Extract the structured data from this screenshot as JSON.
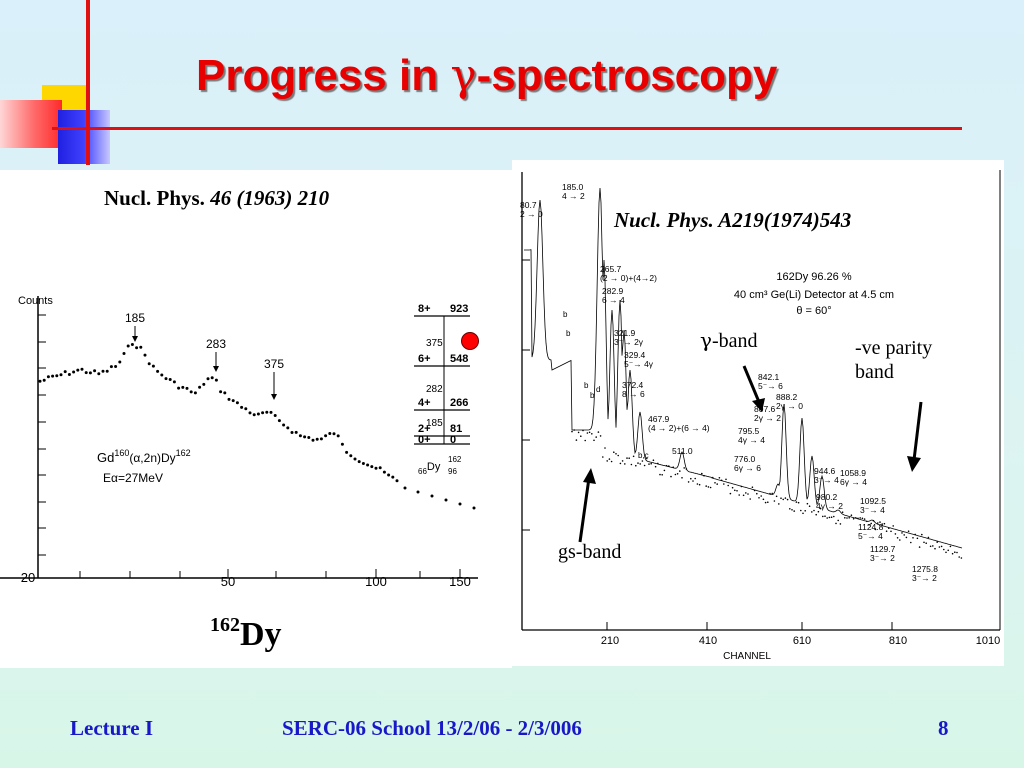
{
  "slide": {
    "title_prefix": "Progress in ",
    "title_gamma": "γ",
    "title_suffix": "-spectroscopy",
    "footer_left": "Lecture I",
    "footer_center": "SERC-06 School  13/2/06 - 2/3/006",
    "page_number": "8",
    "colors": {
      "title": "#e80000",
      "footer": "#1818c8",
      "accent_line": "#e01010"
    }
  },
  "left_figure": {
    "citation_journal": "Nucl. Phys. ",
    "citation_ref": "46 (1963) 210",
    "nucleus_mass": "162",
    "nucleus_symbol": "Dy",
    "ylabel": "Counts",
    "reaction_gd": "Gd",
    "reaction_a160": "160",
    "reaction_mid": "(α,2n)Dy",
    "reaction_a162": "162",
    "beam_energy": "Eα=27MeV",
    "peak_labels": [
      "185",
      "283",
      "375"
    ],
    "x_ticks": [
      "20",
      "50",
      "100",
      "150"
    ],
    "level_scheme": {
      "spins": [
        "8+",
        "6+",
        "4+",
        "2+",
        "0+"
      ],
      "energies": [
        "923",
        "548",
        "266",
        "81",
        "0"
      ],
      "transitions": [
        "375",
        "282",
        "185"
      ],
      "nucleus_Z": "66",
      "nucleus_A": "162",
      "nucleus_sym": "Dy",
      "nucleus_N": "96"
    }
  },
  "right_figure": {
    "citation": "Nucl. Phys. A219(1974)543",
    "info_line1": "162Dy        96.26 %",
    "info_line2": "40 cm³ Ge(Li) Detector  at  4.5 cm",
    "info_line3": "θ = 60°",
    "xlabel": "CHANNEL",
    "x_ticks": [
      "210",
      "410",
      "610",
      "810",
      "1010"
    ],
    "annotations": {
      "gamma_band_symbol": "γ",
      "gamma_band_text": "-band",
      "neg_parity_line1": "-ve parity",
      "neg_parity_line2": "band",
      "gs_band": "gs-band"
    },
    "peaks": [
      {
        "e": "80.7",
        "t": "2 → 0"
      },
      {
        "e": "185.0",
        "t": "4 → 2"
      },
      {
        "e": "265.7",
        "t": "(2 → 0)+(4→2)"
      },
      {
        "e": "282.9",
        "t": "6 → 4"
      },
      {
        "e": "321.9",
        "t": "3⁻→ 2γ"
      },
      {
        "e": "329.4",
        "t": "5⁻→ 4γ"
      },
      {
        "e": "372.4",
        "t": "8 → 6"
      },
      {
        "e": "467.9",
        "t": "(4 → 2)+(6 → 4)"
      },
      {
        "e": "511.0",
        "t": ""
      },
      {
        "e": "776.0",
        "t": "6γ → 6"
      },
      {
        "e": "795.5",
        "t": "4γ → 4"
      },
      {
        "e": "807.6",
        "t": "2γ → 2"
      },
      {
        "e": "842.1",
        "t": "5⁻→ 6"
      },
      {
        "e": "888.2",
        "t": "2γ → 0"
      },
      {
        "e": "944.6",
        "t": "3⁻→ 4"
      },
      {
        "e": "980.2",
        "t": "4γ → 2"
      },
      {
        "e": "1058.9",
        "t": "6γ → 4"
      },
      {
        "e": "1092.5",
        "t": "3⁻→ 4"
      },
      {
        "e": "1124.8",
        "t": "5⁻→ 4"
      },
      {
        "e": "1129.7",
        "t": "3⁻→ 2"
      },
      {
        "e": "1275.8",
        "t": "3⁻→ 2"
      }
    ],
    "letter_marks": [
      "b",
      "b",
      "b",
      "b",
      "d",
      "b,c"
    ]
  }
}
